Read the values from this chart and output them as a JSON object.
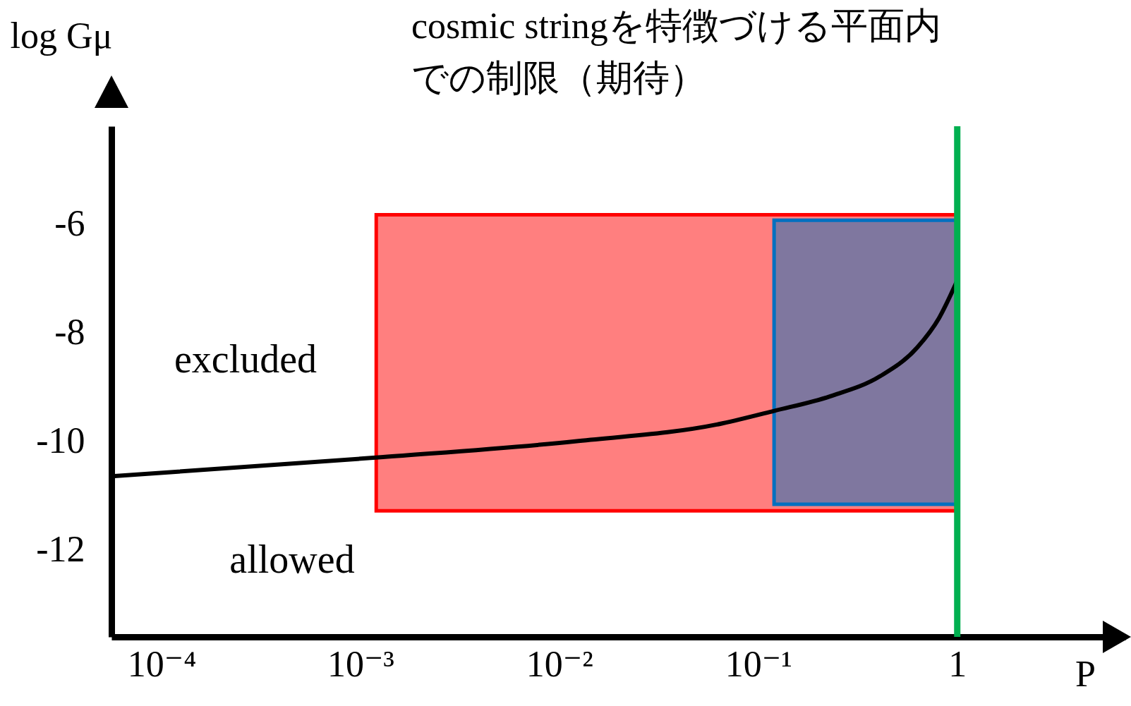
{
  "chart_data": {
    "type": "line",
    "title": "cosmic stringを特徴づける平面内での制限（期待）",
    "xlabel": "P",
    "ylabel": "log Gμ",
    "log": "x",
    "xlim": [
      5.6e-05,
      7
    ],
    "ylim": [
      -13.6,
      -4.2
    ],
    "xticks": [
      {
        "value": 0.0001,
        "label": "10⁻⁴"
      },
      {
        "value": 0.001,
        "label": "10⁻³"
      },
      {
        "value": 0.01,
        "label": "10⁻²"
      },
      {
        "value": 0.1,
        "label": "10⁻¹"
      },
      1
    ],
    "yticks": [
      -6,
      -8,
      -10,
      -12
    ],
    "grid": false,
    "series": [
      {
        "color": "#ff0000",
        "x": [
          0.0012,
          1
        ],
        "values": [
          null,
          null
        ],
        "lower": [
          -11.28,
          -11.28
        ],
        "upper": [
          -5.83,
          -5.83
        ]
      },
      {
        "color": "#0070c0",
        "x": [
          0.12,
          1
        ],
        "values": [
          null,
          null
        ],
        "lower": [
          -11.16,
          -11.16
        ],
        "upper": [
          -5.93,
          -5.93
        ]
      },
      {
        "color": "#000000",
        "x": [
          5.8e-05,
          0.0013,
          0.012,
          0.066,
          0.12,
          0.23,
          0.41,
          0.63,
          0.81,
          1
        ],
        "values": [
          -10.64,
          -10.29,
          -10.0,
          -9.67,
          -9.44,
          -9.17,
          -8.8,
          -8.27,
          -7.73,
          -7.04
        ]
      }
    ],
    "ref_lines": [
      {
        "axis": "x",
        "value": 1,
        "color": "#00b050"
      }
    ],
    "annotations": [
      "excluded",
      "allowed"
    ]
  }
}
